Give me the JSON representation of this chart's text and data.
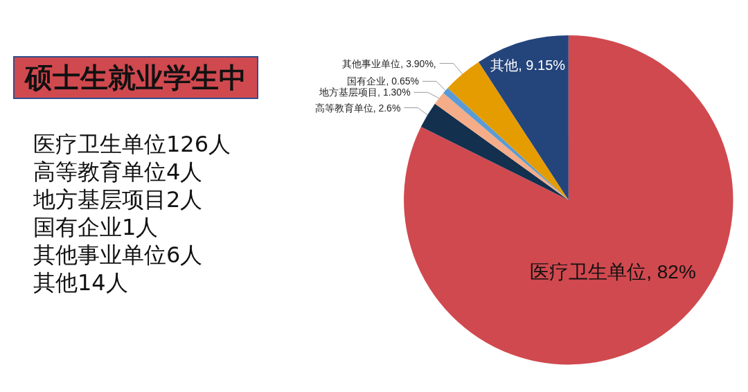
{
  "chart_data": {
    "type": "pie",
    "title": "硕士生就业学生中",
    "categories": [
      "医疗卫生单位",
      "高等教育单位",
      "地方基层项目",
      "国有企业",
      "其他事业单位",
      "其他"
    ],
    "values": [
      82,
      2.6,
      1.3,
      0.65,
      3.9,
      9.15
    ],
    "value_labels": [
      "82%",
      "2.6%",
      "1.30%",
      "0.65%",
      "3.90%,",
      "9.15%"
    ],
    "colors": [
      "#d0494f",
      "#13304f",
      "#f4ad88",
      "#5b9bd5",
      "#e59c00",
      "#24447c"
    ],
    "annotations": [
      "医疗卫生单位126人",
      "高等教育单位4人",
      "地方基层项目2人",
      "国有企业1人",
      "其他事业单位6人",
      "其他14人"
    ],
    "legend": false
  }
}
